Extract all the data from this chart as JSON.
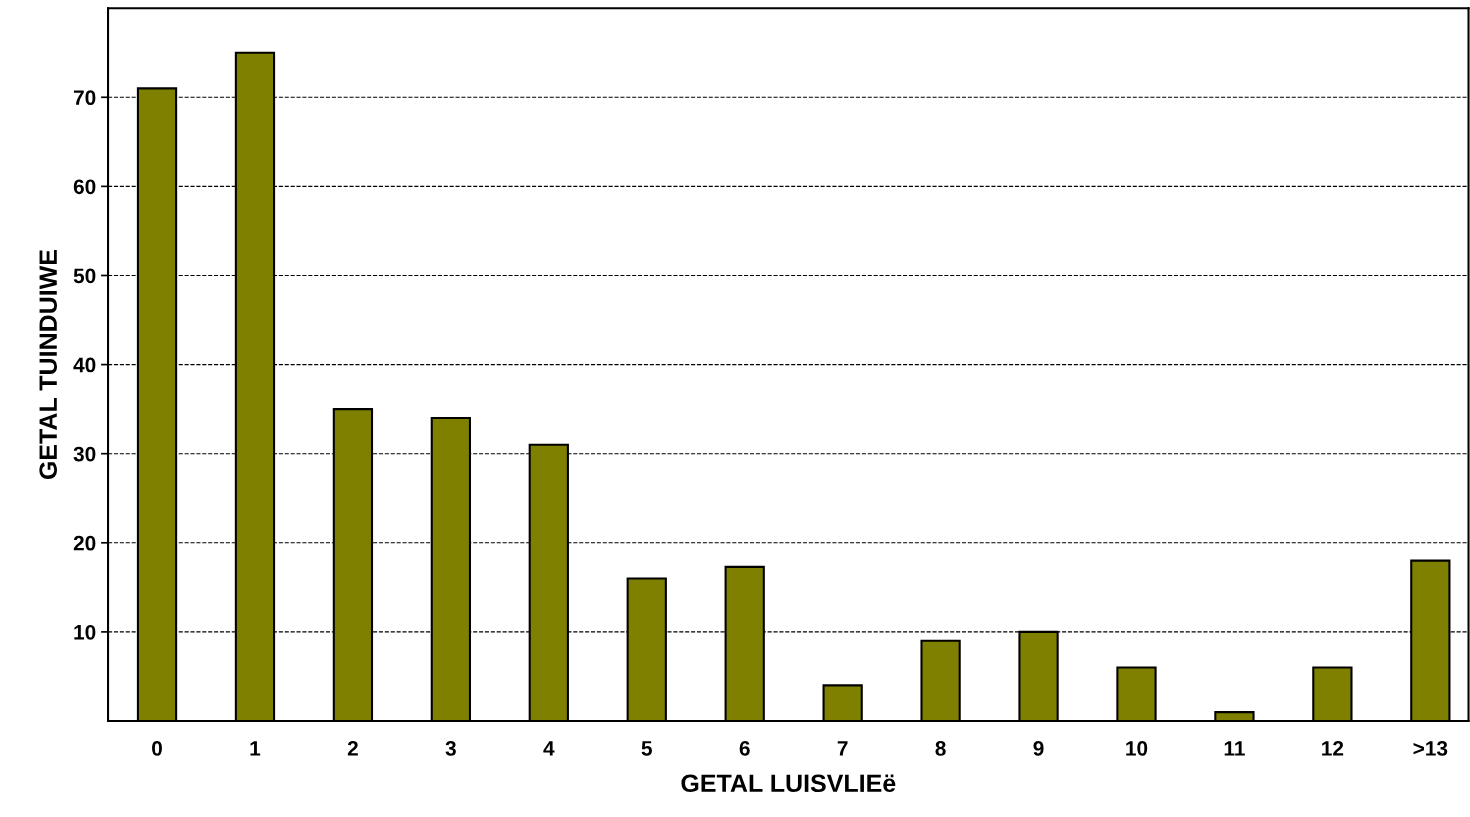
{
  "chart_data": {
    "type": "bar",
    "xlabel": "GETAL LUISVLIEë",
    "ylabel": "GETAL TUINDUIWE",
    "categories": [
      "0",
      "1",
      "2",
      "3",
      "4",
      "5",
      "6",
      "7",
      "8",
      "9",
      "10",
      "11",
      "12",
      ">13"
    ],
    "values": [
      71,
      75,
      35,
      34,
      31,
      16,
      17.3,
      4,
      9,
      10,
      6,
      1,
      6,
      18
    ],
    "color": "#808000",
    "ylim": [
      0,
      80
    ],
    "yticks": [
      10,
      20,
      30,
      40,
      50,
      60,
      70
    ],
    "grid": "y",
    "line_style": "dashed"
  }
}
